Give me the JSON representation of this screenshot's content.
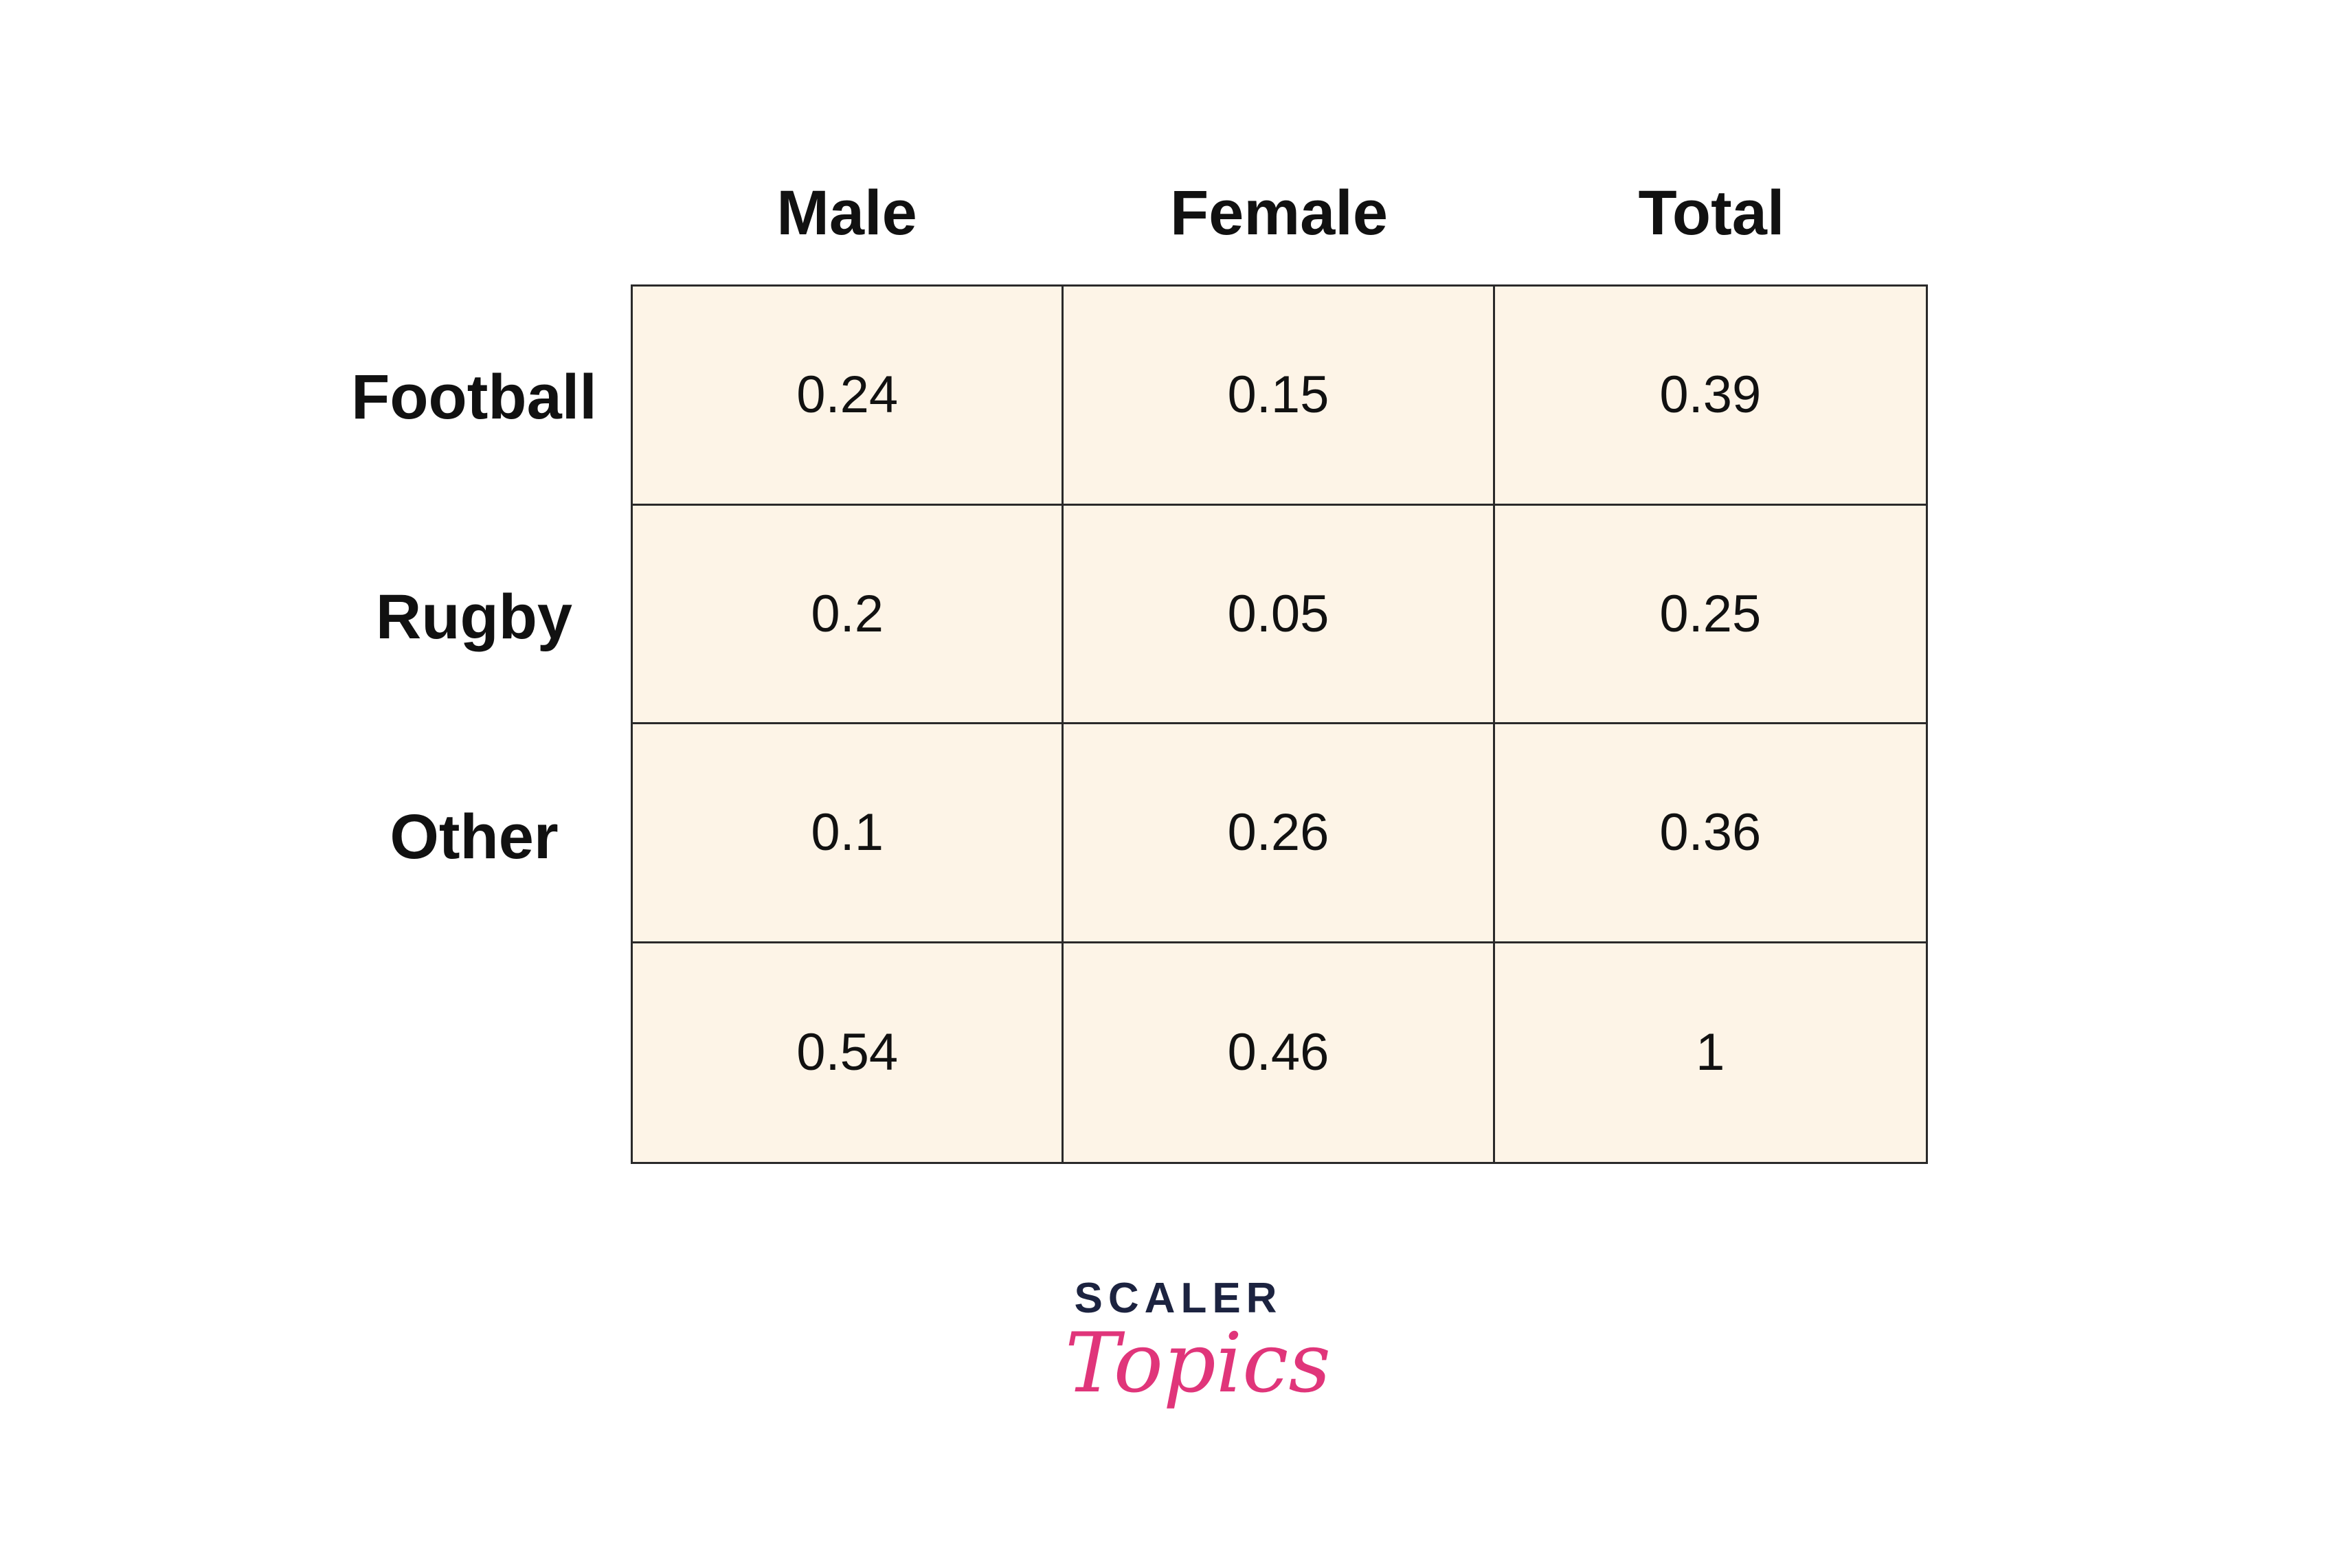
{
  "chart_data": {
    "type": "table",
    "columns": [
      "Male",
      "Female",
      "Total"
    ],
    "rows": [
      {
        "label": "Football",
        "values": [
          "0.24",
          "0.15",
          "0.39"
        ]
      },
      {
        "label": "Rugby",
        "values": [
          "0.2",
          "0.05",
          "0.25"
        ]
      },
      {
        "label": "Other",
        "values": [
          "0.1",
          "0.26",
          "0.36"
        ]
      },
      {
        "label": "",
        "values": [
          "0.54",
          "0.46",
          "1"
        ]
      }
    ]
  },
  "logo": {
    "top": "SCALER",
    "script": "Topics"
  },
  "colors": {
    "cell_background": "#fdf4e7",
    "border": "#2a2a2a",
    "logo_dark": "#1c2340",
    "logo_pink": "#e0357a"
  }
}
